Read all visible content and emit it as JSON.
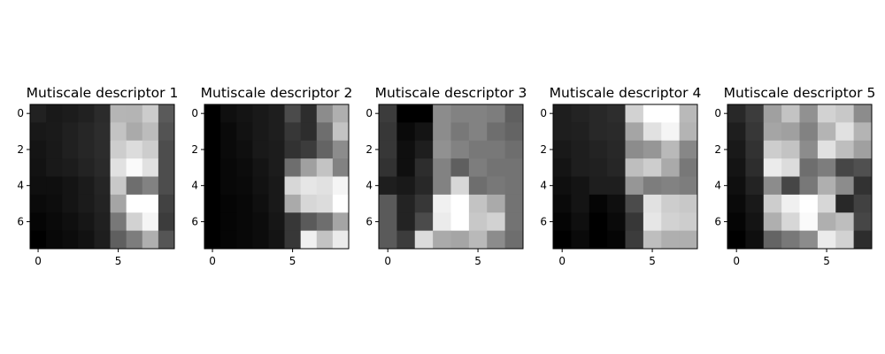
{
  "chart_data": [
    {
      "type": "heatmap",
      "title": "Mutiscale descriptor 1",
      "colormap": "gray",
      "xticks": [
        0,
        5
      ],
      "yticks": [
        0,
        2,
        4,
        6
      ],
      "values": [
        [
          33,
          25,
          28,
          33,
          43,
          181,
          180,
          204,
          90
        ],
        [
          24,
          26,
          32,
          38,
          45,
          195,
          170,
          188,
          83
        ],
        [
          20,
          25,
          32,
          38,
          44,
          205,
          220,
          205,
          77
        ],
        [
          18,
          25,
          28,
          35,
          42,
          225,
          250,
          225,
          77
        ],
        [
          15,
          15,
          20,
          27,
          37,
          200,
          110,
          130,
          77
        ],
        [
          10,
          13,
          20,
          27,
          35,
          165,
          255,
          255,
          66
        ],
        [
          5,
          10,
          15,
          22,
          32,
          120,
          210,
          245,
          60
        ],
        [
          0,
          8,
          12,
          18,
          30,
          95,
          125,
          175,
          85
        ]
      ]
    },
    {
      "type": "heatmap",
      "title": "Mutiscale descriptor 2",
      "colormap": "gray",
      "xticks": [
        0,
        5
      ],
      "yticks": [
        0,
        2,
        4,
        6
      ],
      "values": [
        [
          0,
          15,
          20,
          25,
          30,
          75,
          45,
          140,
          175
        ],
        [
          0,
          10,
          18,
          25,
          30,
          55,
          45,
          110,
          195
        ],
        [
          0,
          10,
          15,
          25,
          28,
          50,
          60,
          100,
          140
        ],
        [
          0,
          8,
          12,
          20,
          28,
          110,
          160,
          195,
          130
        ],
        [
          0,
          8,
          10,
          18,
          25,
          215,
          230,
          225,
          245
        ],
        [
          0,
          5,
          8,
          15,
          25,
          170,
          215,
          220,
          255
        ],
        [
          0,
          5,
          8,
          12,
          22,
          55,
          90,
          110,
          165
        ],
        [
          0,
          5,
          8,
          12,
          20,
          55,
          240,
          195,
          235
        ]
      ]
    },
    {
      "type": "heatmap",
      "title": "Mutiscale descriptor 3",
      "colormap": "gray",
      "xticks": [
        0,
        5
      ],
      "yticks": [
        0,
        2,
        4,
        6
      ],
      "values": [
        [
          60,
          0,
          0,
          140,
          130,
          130,
          125,
          95
        ],
        [
          55,
          10,
          20,
          140,
          120,
          130,
          110,
          100
        ],
        [
          55,
          15,
          30,
          145,
          130,
          120,
          120,
          110
        ],
        [
          50,
          15,
          45,
          130,
          95,
          125,
          115,
          115
        ],
        [
          30,
          25,
          40,
          130,
          215,
          110,
          120,
          115
        ],
        [
          90,
          35,
          55,
          240,
          255,
          195,
          170,
          115
        ],
        [
          90,
          35,
          75,
          235,
          255,
          200,
          210,
          115
        ],
        [
          90,
          60,
          220,
          170,
          165,
          185,
          140,
          110
        ]
      ]
    },
    {
      "type": "heatmap",
      "title": "Mutiscale descriptor 4",
      "colormap": "gray",
      "xticks": [
        0,
        5
      ],
      "yticks": [
        0,
        2,
        4,
        6
      ],
      "values": [
        [
          30,
          35,
          40,
          45,
          210,
          255,
          255,
          185
        ],
        [
          30,
          32,
          40,
          42,
          165,
          225,
          245,
          180
        ],
        [
          25,
          30,
          35,
          40,
          140,
          150,
          185,
          135
        ],
        [
          20,
          30,
          32,
          38,
          190,
          205,
          170,
          120
        ],
        [
          15,
          20,
          30,
          30,
          150,
          125,
          130,
          125
        ],
        [
          10,
          20,
          5,
          15,
          75,
          225,
          205,
          200
        ],
        [
          5,
          15,
          0,
          10,
          55,
          230,
          210,
          205
        ],
        [
          0,
          10,
          0,
          5,
          60,
          190,
          175,
          175
        ]
      ]
    },
    {
      "type": "heatmap",
      "title": "Mutiscale descriptor 5",
      "colormap": "gray",
      "xticks": [
        0,
        5
      ],
      "yticks": [
        0,
        2,
        4,
        6
      ],
      "values": [
        [
          40,
          60,
          160,
          195,
          145,
          210,
          200,
          140
        ],
        [
          30,
          55,
          165,
          160,
          130,
          180,
          225,
          180
        ],
        [
          25,
          50,
          205,
          195,
          140,
          225,
          190,
          160
        ],
        [
          20,
          45,
          235,
          220,
          110,
          125,
          70,
          80
        ],
        [
          15,
          35,
          140,
          70,
          120,
          175,
          140,
          50
        ],
        [
          10,
          25,
          205,
          240,
          255,
          215,
          40,
          65
        ],
        [
          5,
          20,
          175,
          215,
          250,
          175,
          190,
          70
        ],
        [
          0,
          15,
          100,
          120,
          140,
          235,
          210,
          45
        ]
      ]
    }
  ]
}
